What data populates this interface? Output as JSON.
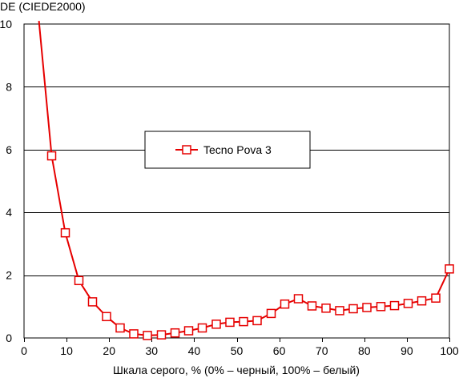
{
  "chart_data": {
    "type": "line",
    "title": "",
    "ylabel": "DE (CIEDE2000)",
    "xlabel": "Шкала серого, % (0% – черный, 100% – белый)",
    "xlim": [
      0,
      100
    ],
    "ylim": [
      0,
      10
    ],
    "xticks": [
      0,
      10,
      20,
      30,
      40,
      50,
      60,
      70,
      80,
      90,
      100
    ],
    "yticks": [
      0,
      2,
      4,
      6,
      8,
      10
    ],
    "grid": "horizontal",
    "legend_position": "center",
    "colors": {
      "series": "#e60000",
      "grid": "#000000",
      "background": "#ffffff"
    },
    "series": [
      {
        "name": "Tecno Pova 3",
        "marker": "square",
        "line_start": {
          "x": 3.5,
          "y": 10.1
        },
        "x": [
          6.5,
          9.7,
          12.9,
          16.1,
          19.4,
          22.6,
          25.8,
          29.0,
          32.3,
          35.5,
          38.7,
          41.9,
          45.2,
          48.4,
          51.6,
          54.8,
          58.1,
          61.3,
          64.5,
          67.7,
          71.0,
          74.2,
          77.4,
          80.6,
          83.9,
          87.1,
          90.3,
          93.5,
          96.8,
          100
        ],
        "values": [
          5.8,
          3.35,
          1.83,
          1.15,
          0.68,
          0.32,
          0.13,
          0.08,
          0.1,
          0.16,
          0.23,
          0.32,
          0.44,
          0.5,
          0.52,
          0.55,
          0.78,
          1.08,
          1.25,
          1.02,
          0.95,
          0.87,
          0.93,
          0.97,
          1.0,
          1.03,
          1.1,
          1.18,
          1.27,
          2.2
        ]
      }
    ]
  }
}
